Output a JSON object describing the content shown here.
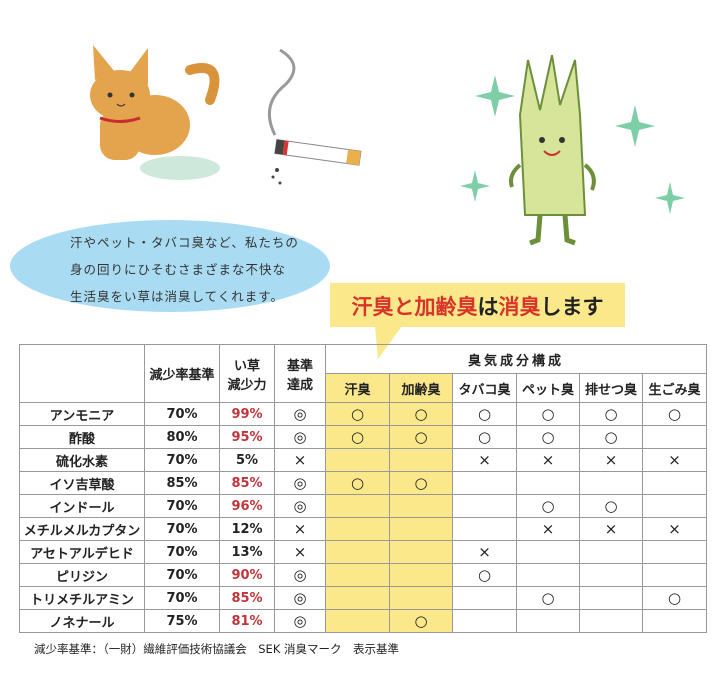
{
  "intro_lines": [
    "汗やペット・タバコ臭など、私たちの",
    "身の回りにひそむさまざまな不快な",
    "生活臭をい草は消臭してくれます。"
  ],
  "callout": {
    "part1": "汗臭と加齢臭",
    "part2": "は",
    "part3": "消臭",
    "part4": "します"
  },
  "table": {
    "headers": {
      "reduction_standard": "減少率基準",
      "igusa_line1": "い草",
      "igusa_line2": "減少力",
      "achieved_line1": "基準",
      "achieved_line2": "達成",
      "odor_group": "臭気成分構成"
    },
    "odor_columns": [
      "汗臭",
      "加齢臭",
      "タバコ臭",
      "ペット臭",
      "排せつ臭",
      "生ごみ臭"
    ],
    "rows": [
      {
        "name": "アンモニア",
        "standard": "70%",
        "igusa": "99%",
        "achieved": "◎",
        "marks": [
          "○",
          "○",
          "○",
          "○",
          "○",
          "○"
        ]
      },
      {
        "name": "酢酸",
        "standard": "80%",
        "igusa": "95%",
        "achieved": "◎",
        "marks": [
          "○",
          "○",
          "○",
          "○",
          "○",
          ""
        ]
      },
      {
        "name": "硫化水素",
        "standard": "70%",
        "igusa": "5%",
        "achieved": "×",
        "marks": [
          "",
          "",
          "×",
          "×",
          "×",
          "×"
        ]
      },
      {
        "name": "イソ吉草酸",
        "standard": "85%",
        "igusa": "85%",
        "achieved": "◎",
        "marks": [
          "○",
          "○",
          "",
          "",
          "",
          ""
        ]
      },
      {
        "name": "インドール",
        "standard": "70%",
        "igusa": "96%",
        "achieved": "◎",
        "marks": [
          "",
          "",
          "",
          "○",
          "○",
          ""
        ]
      },
      {
        "name": "メチルメルカプタン",
        "standard": "70%",
        "igusa": "12%",
        "achieved": "×",
        "marks": [
          "",
          "",
          "",
          "×",
          "×",
          "×"
        ]
      },
      {
        "name": "アセトアルデヒド",
        "standard": "70%",
        "igusa": "13%",
        "achieved": "×",
        "marks": [
          "",
          "",
          "×",
          "",
          "",
          ""
        ]
      },
      {
        "name": "ピリジン",
        "standard": "70%",
        "igusa": "90%",
        "achieved": "◎",
        "marks": [
          "",
          "",
          "○",
          "",
          "",
          ""
        ]
      },
      {
        "name": "トリメチルアミン",
        "standard": "70%",
        "igusa": "85%",
        "achieved": "◎",
        "marks": [
          "",
          "",
          "",
          "○",
          "",
          "○"
        ]
      },
      {
        "name": "ノネナール",
        "standard": "75%",
        "igusa": "81%",
        "achieved": "◎",
        "marks": [
          "",
          "○",
          "",
          "",
          "",
          ""
        ]
      }
    ]
  },
  "footnote": "減少率基準：（一財）繊維評価技術協議会　SEK 消臭マーク　表示基準",
  "colors": {
    "highlight_yellow": "#fbe88a",
    "bubble_blue": "#a9dcf3",
    "accent_red": "#d8352a",
    "value_red": "#c0343a"
  },
  "illustrations": [
    "cat-icon",
    "cigarette-icon",
    "igusa-character-icon",
    "sparkle-icon"
  ]
}
